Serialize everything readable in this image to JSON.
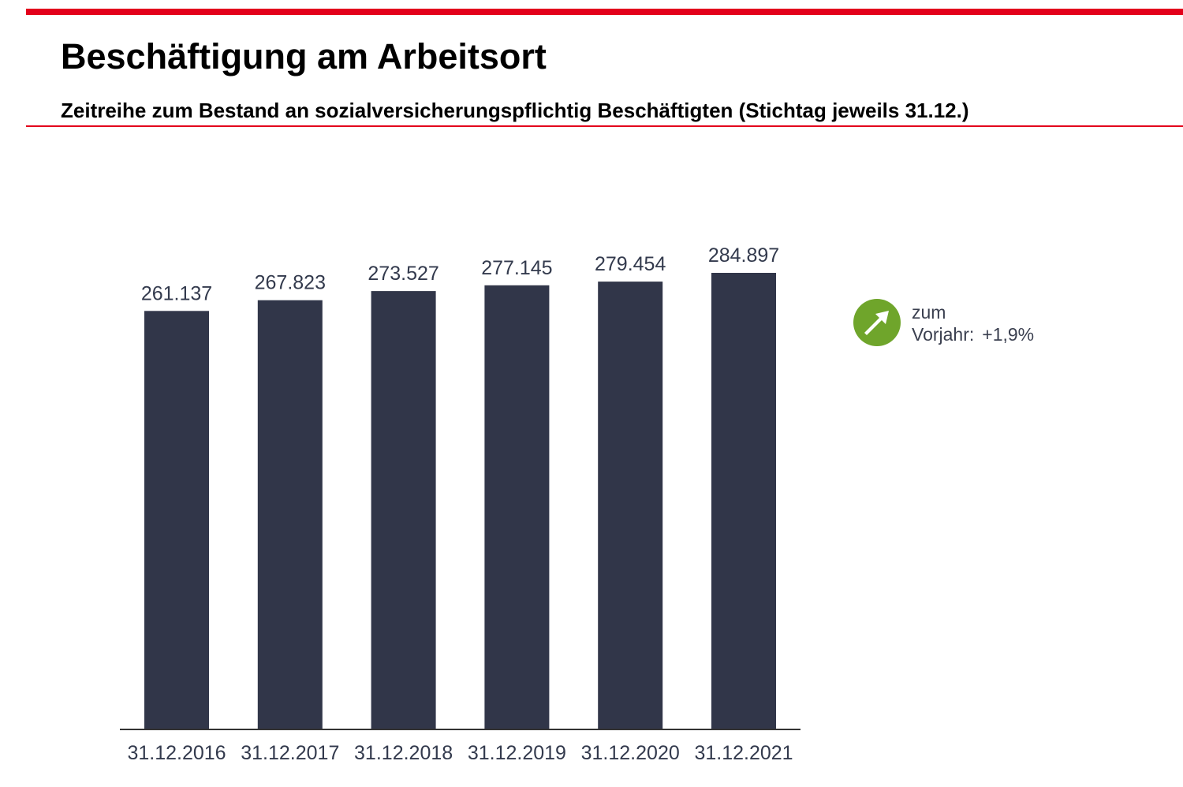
{
  "header": {
    "title": "Beschäftigung am Arbeitsort",
    "subtitle": "Zeitreihe zum Bestand an sozialversicherungspflichtig Beschäftigten (Stichtag jeweils 31.12.)"
  },
  "trend": {
    "label_line1": "zum",
    "label_line2": "Vorjahr:",
    "value": "+1,9%",
    "icon": "arrow-up-right-icon",
    "icon_color": "#6fa52b"
  },
  "colors": {
    "accent": "#e3001b",
    "bar": "#313649",
    "text": "#333a4d"
  },
  "chart_data": {
    "type": "bar",
    "categories": [
      "31.12.2016",
      "31.12.2017",
      "31.12.2018",
      "31.12.2019",
      "31.12.2020",
      "31.12.2021"
    ],
    "values": [
      261137,
      267823,
      273527,
      277145,
      279454,
      284897
    ],
    "value_labels": [
      "261.137",
      "267.823",
      "273.527",
      "277.145",
      "279.454",
      "284.897"
    ],
    "title": "",
    "xlabel": "",
    "ylabel": "",
    "ylim": [
      0,
      284897
    ],
    "grid": false,
    "legend": "none"
  }
}
